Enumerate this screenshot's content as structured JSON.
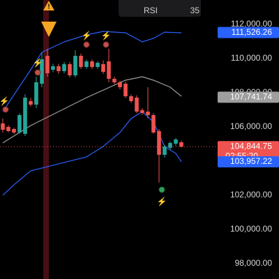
{
  "chart_data": {
    "type": "candlestick",
    "ylim": [
      97100,
      113430
    ],
    "xlim": [
      -0.5,
      49.5
    ],
    "yticks": [
      {
        "value": 98000,
        "label": "98,000.00"
      },
      {
        "value": 100000,
        "label": "100,000.00"
      },
      {
        "value": 102000,
        "label": "102,000.00"
      },
      {
        "value": 106000,
        "label": "106,000.00"
      },
      {
        "value": 108000,
        "label": "108,000.00"
      },
      {
        "value": 110000,
        "label": "110,000.00"
      },
      {
        "value": 112000,
        "label": "112,000.00"
      }
    ],
    "up_color": "#26a69a",
    "down_color": "#ef5350",
    "candles": [
      {
        "o": 106206,
        "h": 106490,
        "l": 105675,
        "c": 105838
      },
      {
        "o": 106002,
        "h": 106100,
        "l": 105700,
        "c": 105757
      },
      {
        "o": 105879,
        "h": 105950,
        "l": 105600,
        "c": 105675
      },
      {
        "o": 105675,
        "h": 106800,
        "l": 105600,
        "c": 106695
      },
      {
        "o": 105594,
        "h": 107919,
        "l": 105471,
        "c": 107715
      },
      {
        "o": 107511,
        "h": 107700,
        "l": 107200,
        "c": 107307
      },
      {
        "o": 107307,
        "h": 108939,
        "l": 107103,
        "c": 108613
      },
      {
        "o": 108531,
        "h": 110367,
        "l": 108327,
        "c": 109959
      },
      {
        "o": 110163,
        "h": 110571,
        "l": 108939,
        "c": 109143
      },
      {
        "o": 109347,
        "h": 109700,
        "l": 109200,
        "c": 109551
      },
      {
        "o": 109551,
        "h": 109700,
        "l": 109100,
        "c": 109266
      },
      {
        "o": 109266,
        "h": 109800,
        "l": 109150,
        "c": 109674
      },
      {
        "o": 109674,
        "h": 109800,
        "l": 108900,
        "c": 109021
      },
      {
        "o": 109021,
        "h": 110490,
        "l": 108900,
        "c": 110163
      },
      {
        "o": 110163,
        "h": 110300,
        "l": 109400,
        "c": 109510
      },
      {
        "o": 109510,
        "h": 109950,
        "l": 109400,
        "c": 109837
      },
      {
        "o": 109837,
        "h": 109950,
        "l": 109400,
        "c": 109510
      },
      {
        "o": 109510,
        "h": 109850,
        "l": 109400,
        "c": 109755
      },
      {
        "o": 109674,
        "h": 109900,
        "l": 109100,
        "c": 109225
      },
      {
        "o": 109837,
        "h": 110571,
        "l": 108613,
        "c": 108817
      },
      {
        "o": 108817,
        "h": 108950,
        "l": 108500,
        "c": 108613
      },
      {
        "o": 108613,
        "h": 108700,
        "l": 108200,
        "c": 108327
      },
      {
        "o": 108531,
        "h": 108650,
        "l": 107700,
        "c": 107797
      },
      {
        "o": 107797,
        "h": 107900,
        "l": 107400,
        "c": 107511
      },
      {
        "o": 107715,
        "h": 107850,
        "l": 106800,
        "c": 106899
      },
      {
        "o": 106981,
        "h": 107100,
        "l": 106700,
        "c": 106818
      },
      {
        "o": 106899,
        "h": 108327,
        "l": 106500,
        "c": 106695
      },
      {
        "o": 106695,
        "h": 106800,
        "l": 105600,
        "c": 105675
      },
      {
        "o": 105757,
        "h": 105879,
        "l": 102738,
        "c": 104370
      },
      {
        "o": 104370,
        "h": 104950,
        "l": 104200,
        "c": 104859
      },
      {
        "o": 104778,
        "h": 105150,
        "l": 104650,
        "c": 105063
      },
      {
        "o": 105022,
        "h": 105350,
        "l": 104900,
        "c": 105267
      },
      {
        "o": 105104,
        "h": 105200,
        "l": 104800,
        "c": 104844.75
      }
    ],
    "series": [
      {
        "color": "#2962ff",
        "x": [
          0,
          5,
          7,
          11,
          15,
          18,
          22,
          25,
          27,
          29,
          32
        ],
        "values": [
          106899,
          109347,
          110367,
          110979,
          111387,
          111591,
          111510,
          110979,
          111183,
          111550,
          111510
        ]
      },
      {
        "color": "#9e9e9e",
        "x": [
          0,
          5,
          10,
          15,
          20,
          22,
          25,
          27,
          30,
          32
        ],
        "values": [
          105063,
          106083,
          106899,
          107715,
          108450,
          108735,
          108939,
          108735,
          108327,
          107797
        ]
      },
      {
        "color": "#2962ff",
        "x": [
          0,
          2,
          5,
          10,
          15,
          18,
          21,
          23,
          25,
          27,
          29,
          31,
          32
        ],
        "values": [
          102003,
          102615,
          103431,
          103839,
          104247,
          104859,
          105675,
          106491,
          106899,
          106287,
          104859,
          104451,
          103962
        ]
      }
    ],
    "price_labels": [
      {
        "value": 111526.26,
        "label": "111,526.26",
        "color": "#2962ff"
      },
      {
        "value": 107741.74,
        "label": "107,741.74",
        "color": "#9e9e9e"
      },
      {
        "value": 104844.75,
        "label": "104,844.75",
        "color": "#ef5350",
        "countdown": "02:55:20"
      },
      {
        "value": 103957.22,
        "label": "103,957.22",
        "color": "#2962ff"
      }
    ],
    "indicator": {
      "name": "RSI",
      "value": 35
    }
  }
}
